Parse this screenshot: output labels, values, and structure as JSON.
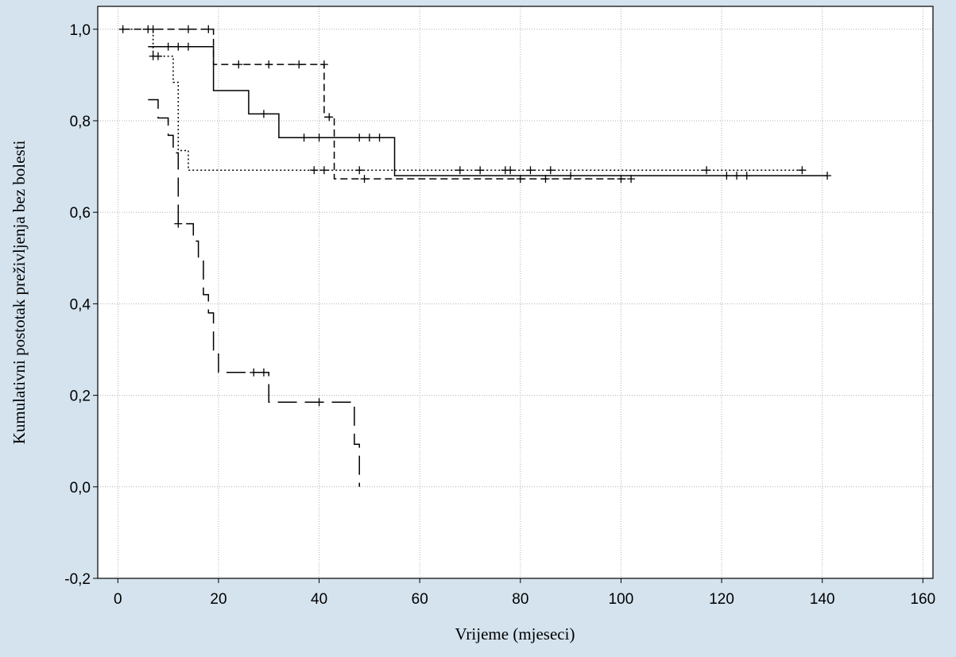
{
  "colors": {
    "background": "#d4e3ee",
    "plot_background": "#ffffff",
    "grid": "#b0b0b0",
    "lines": "#000000"
  },
  "chart_data": {
    "type": "line",
    "subtype": "kaplan-meier",
    "title": "",
    "xlabel": "Vrijeme (mjeseci)",
    "ylabel": "Kumulativni postotak preživljenja bez bolesti",
    "xlim": [
      -4,
      162
    ],
    "ylim": [
      -0.2,
      1.05
    ],
    "x_ticks": [
      0,
      20,
      40,
      60,
      80,
      100,
      120,
      140,
      160
    ],
    "x_tick_labels": [
      "0",
      "20",
      "40",
      "60",
      "80",
      "100",
      "120",
      "140",
      "160"
    ],
    "y_ticks": [
      -0.2,
      0.0,
      0.2,
      0.4,
      0.6,
      0.8,
      1.0
    ],
    "y_tick_labels": [
      "-0,2",
      "0,0",
      "0,2",
      "0,4",
      "0,6",
      "0,8",
      "1,0"
    ],
    "grid": true,
    "series": [
      {
        "line_style": "solid",
        "steps": [
          [
            6,
            0.962
          ],
          [
            18,
            0.962
          ],
          [
            19,
            0.866
          ],
          [
            26,
            0.866
          ],
          [
            26,
            0.815
          ],
          [
            32,
            0.815
          ],
          [
            32,
            0.763
          ],
          [
            55,
            0.763
          ],
          [
            55,
            0.68
          ],
          [
            141,
            0.68
          ]
        ],
        "censored": [
          [
            10,
            0.962
          ],
          [
            12,
            0.962
          ],
          [
            14,
            0.962
          ],
          [
            29,
            0.815
          ],
          [
            37,
            0.763
          ],
          [
            40,
            0.763
          ],
          [
            48,
            0.763
          ],
          [
            50,
            0.763
          ],
          [
            52,
            0.763
          ],
          [
            90,
            0.68
          ],
          [
            121,
            0.68
          ],
          [
            123,
            0.68
          ],
          [
            125,
            0.68
          ],
          [
            141,
            0.68
          ]
        ]
      },
      {
        "line_style": "dashed",
        "steps": [
          [
            1,
            1.0
          ],
          [
            18,
            1.0
          ],
          [
            19,
            0.923
          ],
          [
            41,
            0.923
          ],
          [
            41,
            0.808
          ],
          [
            43,
            0.808
          ],
          [
            43,
            0.673
          ],
          [
            101,
            0.673
          ]
        ],
        "censored": [
          [
            7,
            1.0
          ],
          [
            14,
            1.0
          ],
          [
            18,
            1.0
          ],
          [
            24,
            0.923
          ],
          [
            30,
            0.923
          ],
          [
            36,
            0.923
          ],
          [
            41,
            0.923
          ],
          [
            42,
            0.808
          ],
          [
            49,
            0.673
          ],
          [
            80,
            0.673
          ],
          [
            85,
            0.673
          ],
          [
            100,
            0.673
          ],
          [
            102,
            0.673
          ]
        ]
      },
      {
        "line_style": "dotted",
        "steps": [
          [
            1,
            1.0
          ],
          [
            7,
            1.0
          ],
          [
            7,
            0.941
          ],
          [
            10,
            0.941
          ],
          [
            11,
            0.884
          ],
          [
            12,
            0.735
          ],
          [
            14,
            0.735
          ],
          [
            14,
            0.692
          ],
          [
            136,
            0.692
          ]
        ],
        "censored": [
          [
            1,
            1.0
          ],
          [
            6,
            1.0
          ],
          [
            7,
            0.941
          ],
          [
            8,
            0.941
          ],
          [
            39,
            0.692
          ],
          [
            41,
            0.692
          ],
          [
            48,
            0.692
          ],
          [
            68,
            0.692
          ],
          [
            72,
            0.692
          ],
          [
            77,
            0.692
          ],
          [
            78,
            0.692
          ],
          [
            82,
            0.692
          ],
          [
            86,
            0.692
          ],
          [
            117,
            0.692
          ],
          [
            136,
            0.692
          ]
        ]
      },
      {
        "line_style": "long-dashed",
        "steps": [
          [
            6,
            0.846
          ],
          [
            8,
            0.806
          ],
          [
            10,
            0.768
          ],
          [
            11,
            0.73
          ],
          [
            12,
            0.575
          ],
          [
            15,
            0.537
          ],
          [
            16,
            0.498
          ],
          [
            17,
            0.42
          ],
          [
            18,
            0.38
          ],
          [
            19,
            0.29
          ],
          [
            20,
            0.25
          ],
          [
            29,
            0.25
          ],
          [
            30,
            0.185
          ],
          [
            47,
            0.185
          ],
          [
            47,
            0.093
          ],
          [
            48,
            0.0
          ]
        ],
        "censored": [
          [
            12,
            0.575
          ],
          [
            27,
            0.25
          ],
          [
            29,
            0.25
          ],
          [
            40,
            0.185
          ]
        ]
      }
    ]
  }
}
